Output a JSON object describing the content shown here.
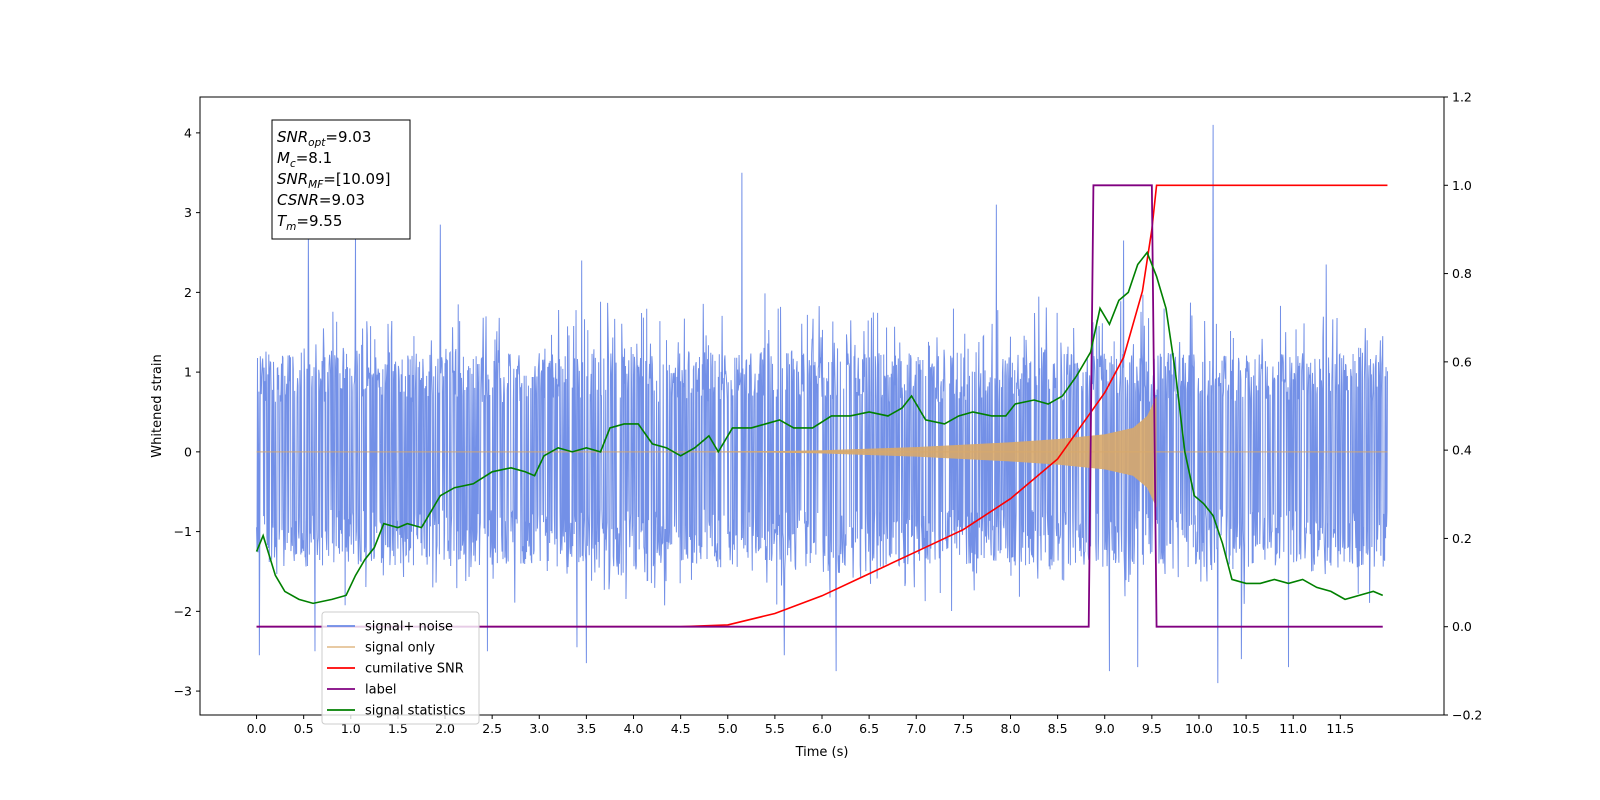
{
  "chart_data": {
    "type": "line",
    "xlabel": "Time (s)",
    "ylabel": "Whitened strain",
    "xlim": [
      -0.6,
      12.6
    ],
    "ylim": [
      -3.3,
      4.45
    ],
    "ylim_right": [
      -0.2,
      1.2
    ],
    "x_ticks": [
      0.0,
      0.5,
      1.0,
      1.5,
      2.0,
      2.5,
      3.0,
      3.5,
      4.0,
      4.5,
      5.0,
      5.5,
      6.0,
      6.5,
      7.0,
      7.5,
      8.0,
      8.5,
      9.0,
      9.5,
      10.0,
      10.5,
      11.0,
      11.5
    ],
    "x_tick_labels": [
      "0.0",
      "0.5",
      "1.0",
      "1.5",
      "2.0",
      "2.5",
      "3.0",
      "3.5",
      "4.0",
      "4.5",
      "5.0",
      "5.5",
      "6.0",
      "6.5",
      "7.0",
      "7.5",
      "8.0",
      "8.5",
      "9.0",
      "9.5",
      "10.0",
      "10.5",
      "11.0",
      "11.5"
    ],
    "y_ticks_left": [
      -3,
      -2,
      -1,
      0,
      1,
      2,
      3,
      4
    ],
    "y_tick_labels_left": [
      "−3",
      "−2",
      "−1",
      "0",
      "1",
      "2",
      "3",
      "4"
    ],
    "y_ticks_right": [
      -0.2,
      0.0,
      0.2,
      0.4,
      0.6,
      0.8,
      1.0,
      1.2
    ],
    "y_tick_labels_right": [
      "−0.2",
      "0.0",
      "0.2",
      "0.4",
      "0.6",
      "0.8",
      "1.0",
      "1.2"
    ],
    "grid": false,
    "legend_position": "lower-left",
    "annotation": {
      "lines": [
        {
          "base": "SNR",
          "sub": "opt",
          "value": "=9.03"
        },
        {
          "base": "M",
          "sub": "c",
          "value": "=8.1"
        },
        {
          "base": "SNR",
          "sub": "MF",
          "value": "=[10.09]"
        },
        {
          "base": "CSNR",
          "sub": "",
          "value": "=9.03"
        },
        {
          "base": "T",
          "sub": "m",
          "value": "=9.55"
        }
      ]
    },
    "series": [
      {
        "name": "signal+ noise",
        "axis": "left",
        "color": "#6b8ae6",
        "kind": "noise",
        "x_range": [
          0.0,
          12.0
        ],
        "band_top": 1.25,
        "band_bottom": -1.45,
        "envelope_top": 2.0,
        "envelope_bottom": -2.0,
        "spikes": [
          [
            0.03,
            -2.55
          ],
          [
            0.55,
            2.75
          ],
          [
            0.62,
            -2.5
          ],
          [
            1.05,
            2.75
          ],
          [
            1.95,
            2.85
          ],
          [
            2.45,
            -2.5
          ],
          [
            3.4,
            -2.45
          ],
          [
            3.45,
            2.4
          ],
          [
            3.5,
            -2.65
          ],
          [
            5.15,
            3.5
          ],
          [
            5.6,
            -2.55
          ],
          [
            6.15,
            -2.75
          ],
          [
            7.85,
            3.1
          ],
          [
            9.05,
            -2.75
          ],
          [
            9.2,
            2.65
          ],
          [
            9.35,
            -2.7
          ],
          [
            10.15,
            4.1
          ],
          [
            10.2,
            -2.9
          ],
          [
            10.45,
            -2.6
          ],
          [
            10.95,
            -2.7
          ],
          [
            11.35,
            2.35
          ]
        ]
      },
      {
        "name": "signal only",
        "axis": "left",
        "color": "#d8a86a",
        "kind": "chirp",
        "flat_until": 4.5,
        "peak_time": 9.55,
        "envelope": [
          [
            4.5,
            0.0
          ],
          [
            5.0,
            0.005
          ],
          [
            5.5,
            0.01
          ],
          [
            6.0,
            0.02
          ],
          [
            6.5,
            0.04
          ],
          [
            7.0,
            0.06
          ],
          [
            7.5,
            0.09
          ],
          [
            8.0,
            0.12
          ],
          [
            8.5,
            0.16
          ],
          [
            9.0,
            0.22
          ],
          [
            9.3,
            0.3
          ],
          [
            9.45,
            0.45
          ],
          [
            9.55,
            0.7
          ],
          [
            9.6,
            0.0
          ]
        ]
      },
      {
        "name": "cumilative SNR",
        "axis": "right",
        "color": "#ff0000",
        "points": [
          [
            0.0,
            0.0
          ],
          [
            4.5,
            0.0
          ],
          [
            5.0,
            0.004
          ],
          [
            5.5,
            0.03
          ],
          [
            6.0,
            0.07
          ],
          [
            6.5,
            0.12
          ],
          [
            7.0,
            0.17
          ],
          [
            7.5,
            0.22
          ],
          [
            8.0,
            0.29
          ],
          [
            8.5,
            0.38
          ],
          [
            9.0,
            0.53
          ],
          [
            9.2,
            0.61
          ],
          [
            9.4,
            0.76
          ],
          [
            9.5,
            0.9
          ],
          [
            9.55,
            1.0
          ],
          [
            12.0,
            1.0
          ]
        ]
      },
      {
        "name": "label",
        "axis": "right",
        "color": "#800080",
        "points": [
          [
            0.0,
            0.0
          ],
          [
            8.83,
            0.0
          ],
          [
            8.88,
            1.0
          ],
          [
            9.5,
            1.0
          ],
          [
            9.55,
            0.0
          ],
          [
            11.95,
            0.0
          ]
        ]
      },
      {
        "name": "signal statistics",
        "axis": "left",
        "color": "#008000",
        "points": [
          [
            0.0,
            -1.25
          ],
          [
            0.07,
            -1.05
          ],
          [
            0.2,
            -1.55
          ],
          [
            0.3,
            -1.75
          ],
          [
            0.45,
            -1.85
          ],
          [
            0.6,
            -1.9
          ],
          [
            0.8,
            -1.85
          ],
          [
            0.95,
            -1.8
          ],
          [
            1.05,
            -1.55
          ],
          [
            1.15,
            -1.35
          ],
          [
            1.25,
            -1.2
          ],
          [
            1.35,
            -0.9
          ],
          [
            1.5,
            -0.95
          ],
          [
            1.6,
            -0.9
          ],
          [
            1.75,
            -0.95
          ],
          [
            1.85,
            -0.75
          ],
          [
            1.95,
            -0.55
          ],
          [
            2.1,
            -0.45
          ],
          [
            2.3,
            -0.4
          ],
          [
            2.5,
            -0.25
          ],
          [
            2.7,
            -0.2
          ],
          [
            2.85,
            -0.25
          ],
          [
            2.95,
            -0.3
          ],
          [
            3.05,
            -0.05
          ],
          [
            3.2,
            0.05
          ],
          [
            3.35,
            0.0
          ],
          [
            3.5,
            0.05
          ],
          [
            3.65,
            0.0
          ],
          [
            3.75,
            0.3
          ],
          [
            3.9,
            0.35
          ],
          [
            4.05,
            0.35
          ],
          [
            4.2,
            0.1
          ],
          [
            4.35,
            0.05
          ],
          [
            4.5,
            -0.05
          ],
          [
            4.65,
            0.05
          ],
          [
            4.8,
            0.2
          ],
          [
            4.9,
            0.0
          ],
          [
            5.05,
            0.3
          ],
          [
            5.25,
            0.3
          ],
          [
            5.4,
            0.35
          ],
          [
            5.55,
            0.4
          ],
          [
            5.7,
            0.3
          ],
          [
            5.9,
            0.3
          ],
          [
            6.1,
            0.45
          ],
          [
            6.3,
            0.45
          ],
          [
            6.5,
            0.5
          ],
          [
            6.7,
            0.45
          ],
          [
            6.85,
            0.55
          ],
          [
            6.95,
            0.7
          ],
          [
            7.1,
            0.4
          ],
          [
            7.3,
            0.35
          ],
          [
            7.45,
            0.45
          ],
          [
            7.6,
            0.5
          ],
          [
            7.8,
            0.45
          ],
          [
            7.95,
            0.45
          ],
          [
            8.05,
            0.6
          ],
          [
            8.25,
            0.65
          ],
          [
            8.4,
            0.6
          ],
          [
            8.55,
            0.7
          ],
          [
            8.7,
            0.95
          ],
          [
            8.85,
            1.25
          ],
          [
            8.95,
            1.8
          ],
          [
            9.05,
            1.6
          ],
          [
            9.15,
            1.9
          ],
          [
            9.25,
            2.0
          ],
          [
            9.35,
            2.35
          ],
          [
            9.45,
            2.5
          ],
          [
            9.55,
            2.2
          ],
          [
            9.65,
            1.8
          ],
          [
            9.75,
            1.0
          ],
          [
            9.85,
            0.0
          ],
          [
            9.95,
            -0.55
          ],
          [
            10.05,
            -0.65
          ],
          [
            10.15,
            -0.8
          ],
          [
            10.25,
            -1.15
          ],
          [
            10.35,
            -1.6
          ],
          [
            10.5,
            -1.65
          ],
          [
            10.65,
            -1.65
          ],
          [
            10.8,
            -1.6
          ],
          [
            10.95,
            -1.65
          ],
          [
            11.1,
            -1.6
          ],
          [
            11.25,
            -1.7
          ],
          [
            11.4,
            -1.75
          ],
          [
            11.55,
            -1.85
          ],
          [
            11.7,
            -1.8
          ],
          [
            11.85,
            -1.75
          ],
          [
            11.95,
            -1.8
          ]
        ]
      }
    ]
  }
}
